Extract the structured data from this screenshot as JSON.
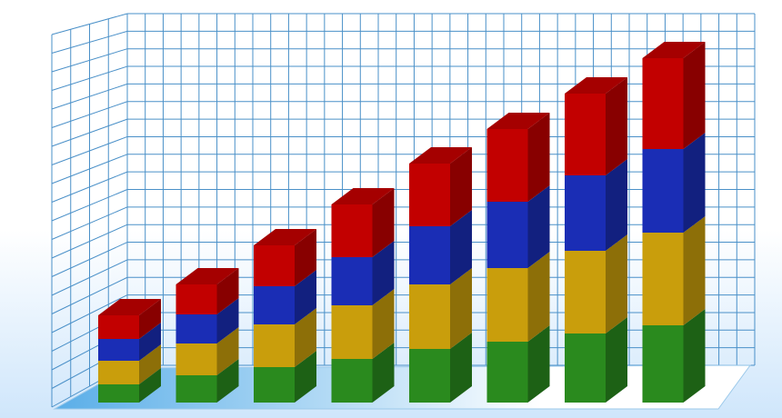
{
  "chart_data": {
    "type": "bar",
    "stacked": true,
    "categories": [
      null,
      null,
      null,
      null,
      null,
      null,
      null,
      null
    ],
    "series": [
      {
        "color": "#2a8a1e",
        "values": [
          20,
          30,
          39,
          48,
          59,
          67,
          76,
          85
        ]
      },
      {
        "color": "#c99e0c",
        "values": [
          26,
          35,
          47,
          59,
          71,
          81,
          91,
          102
        ]
      },
      {
        "color": "#1a2db5",
        "values": [
          24,
          32,
          42,
          53,
          64,
          73,
          83,
          92
        ]
      },
      {
        "color": "#c20000",
        "values": [
          26,
          33,
          45,
          58,
          69,
          80,
          90,
          100
        ]
      }
    ],
    "ylim": [
      0,
      400
    ]
  }
}
